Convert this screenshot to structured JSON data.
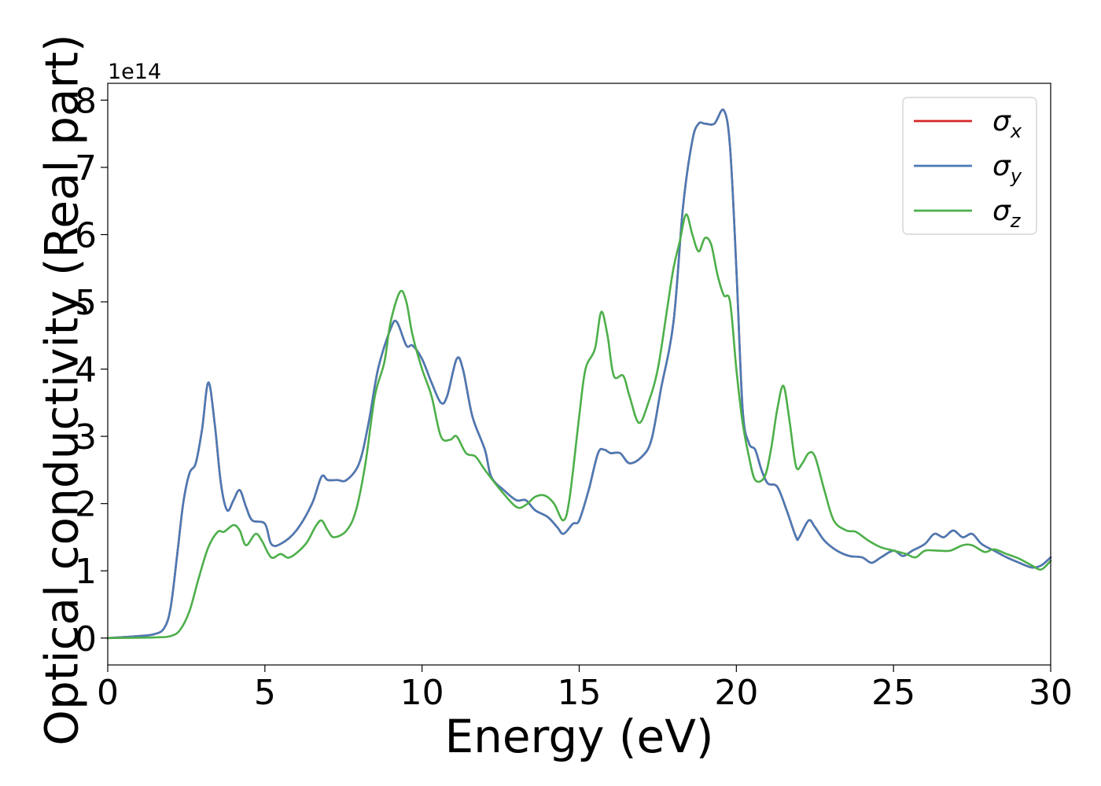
{
  "chart_data": {
    "type": "line",
    "xlabel": "Energy (eV)",
    "ylabel": "Optical conductivity (Real part)",
    "y_offset_label": "1e14",
    "xlim": [
      0,
      30
    ],
    "ylim": [
      -0.4,
      8.25
    ],
    "x_ticks": [
      0,
      5,
      10,
      15,
      20,
      25,
      30
    ],
    "y_ticks": [
      0,
      1,
      2,
      3,
      4,
      5,
      6,
      7,
      8
    ],
    "grid": false,
    "legend_position": "top-right",
    "series": [
      {
        "name": "σx",
        "legend_symbol": "σ",
        "legend_subscript": "x",
        "color": "#d62728",
        "points": [
          [
            0,
            0
          ],
          [
            1,
            0.03
          ],
          [
            1.5,
            0.06
          ],
          [
            1.8,
            0.15
          ],
          [
            2.0,
            0.45
          ],
          [
            2.2,
            1.2
          ],
          [
            2.4,
            2.0
          ],
          [
            2.6,
            2.45
          ],
          [
            2.8,
            2.6
          ],
          [
            3.0,
            3.1
          ],
          [
            3.2,
            3.8
          ],
          [
            3.4,
            3.2
          ],
          [
            3.6,
            2.3
          ],
          [
            3.8,
            1.9
          ],
          [
            4.0,
            2.05
          ],
          [
            4.2,
            2.2
          ],
          [
            4.4,
            1.95
          ],
          [
            4.6,
            1.75
          ],
          [
            5.0,
            1.7
          ],
          [
            5.2,
            1.4
          ],
          [
            5.5,
            1.4
          ],
          [
            6.0,
            1.6
          ],
          [
            6.5,
            2.0
          ],
          [
            6.8,
            2.4
          ],
          [
            7.0,
            2.35
          ],
          [
            7.3,
            2.35
          ],
          [
            7.6,
            2.35
          ],
          [
            8.0,
            2.6
          ],
          [
            8.3,
            3.2
          ],
          [
            8.6,
            4.0
          ],
          [
            9.0,
            4.6
          ],
          [
            9.2,
            4.7
          ],
          [
            9.5,
            4.35
          ],
          [
            9.7,
            4.35
          ],
          [
            10.0,
            4.15
          ],
          [
            10.3,
            3.8
          ],
          [
            10.6,
            3.5
          ],
          [
            10.8,
            3.6
          ],
          [
            11.1,
            4.15
          ],
          [
            11.3,
            4.0
          ],
          [
            11.6,
            3.3
          ],
          [
            12.0,
            2.8
          ],
          [
            12.2,
            2.4
          ],
          [
            12.6,
            2.2
          ],
          [
            13.0,
            2.05
          ],
          [
            13.3,
            2.05
          ],
          [
            13.6,
            1.9
          ],
          [
            14.0,
            1.8
          ],
          [
            14.3,
            1.65
          ],
          [
            14.5,
            1.55
          ],
          [
            14.8,
            1.7
          ],
          [
            15.0,
            1.75
          ],
          [
            15.3,
            2.2
          ],
          [
            15.6,
            2.75
          ],
          [
            15.8,
            2.8
          ],
          [
            16.0,
            2.75
          ],
          [
            16.3,
            2.75
          ],
          [
            16.6,
            2.6
          ],
          [
            17.0,
            2.7
          ],
          [
            17.3,
            2.95
          ],
          [
            17.6,
            3.7
          ],
          [
            18.0,
            4.7
          ],
          [
            18.3,
            6.4
          ],
          [
            18.6,
            7.4
          ],
          [
            18.8,
            7.65
          ],
          [
            19.0,
            7.65
          ],
          [
            19.3,
            7.65
          ],
          [
            19.6,
            7.85
          ],
          [
            19.8,
            7.3
          ],
          [
            20.0,
            5.5
          ],
          [
            20.2,
            3.4
          ],
          [
            20.4,
            2.9
          ],
          [
            20.6,
            2.8
          ],
          [
            20.8,
            2.5
          ],
          [
            21.0,
            2.3
          ],
          [
            21.3,
            2.25
          ],
          [
            21.6,
            1.9
          ],
          [
            21.9,
            1.5
          ],
          [
            22.0,
            1.5
          ],
          [
            22.3,
            1.75
          ],
          [
            22.5,
            1.65
          ],
          [
            22.8,
            1.45
          ],
          [
            23.2,
            1.3
          ],
          [
            23.6,
            1.22
          ],
          [
            24.0,
            1.2
          ],
          [
            24.3,
            1.12
          ],
          [
            24.6,
            1.2
          ],
          [
            25.0,
            1.3
          ],
          [
            25.3,
            1.22
          ],
          [
            25.6,
            1.3
          ],
          [
            26.0,
            1.4
          ],
          [
            26.3,
            1.55
          ],
          [
            26.6,
            1.5
          ],
          [
            26.9,
            1.6
          ],
          [
            27.2,
            1.5
          ],
          [
            27.5,
            1.55
          ],
          [
            27.8,
            1.4
          ],
          [
            28.2,
            1.3
          ],
          [
            28.6,
            1.2
          ],
          [
            29.0,
            1.12
          ],
          [
            29.4,
            1.05
          ],
          [
            29.7,
            1.08
          ],
          [
            30.0,
            1.2
          ]
        ]
      },
      {
        "name": "σy",
        "legend_symbol": "σ",
        "legend_subscript": "y",
        "color": "#4a7ab5",
        "points": [
          [
            0,
            0
          ],
          [
            1,
            0.03
          ],
          [
            1.5,
            0.06
          ],
          [
            1.8,
            0.15
          ],
          [
            2.0,
            0.45
          ],
          [
            2.2,
            1.2
          ],
          [
            2.4,
            2.0
          ],
          [
            2.6,
            2.45
          ],
          [
            2.8,
            2.6
          ],
          [
            3.0,
            3.1
          ],
          [
            3.2,
            3.8
          ],
          [
            3.4,
            3.2
          ],
          [
            3.6,
            2.3
          ],
          [
            3.8,
            1.9
          ],
          [
            4.0,
            2.05
          ],
          [
            4.2,
            2.2
          ],
          [
            4.4,
            1.95
          ],
          [
            4.6,
            1.75
          ],
          [
            5.0,
            1.7
          ],
          [
            5.2,
            1.4
          ],
          [
            5.5,
            1.4
          ],
          [
            6.0,
            1.6
          ],
          [
            6.5,
            2.0
          ],
          [
            6.8,
            2.4
          ],
          [
            7.0,
            2.35
          ],
          [
            7.3,
            2.35
          ],
          [
            7.6,
            2.35
          ],
          [
            8.0,
            2.6
          ],
          [
            8.3,
            3.2
          ],
          [
            8.6,
            4.0
          ],
          [
            9.0,
            4.6
          ],
          [
            9.2,
            4.7
          ],
          [
            9.5,
            4.35
          ],
          [
            9.7,
            4.35
          ],
          [
            10.0,
            4.15
          ],
          [
            10.3,
            3.8
          ],
          [
            10.6,
            3.5
          ],
          [
            10.8,
            3.6
          ],
          [
            11.1,
            4.15
          ],
          [
            11.3,
            4.0
          ],
          [
            11.6,
            3.3
          ],
          [
            12.0,
            2.8
          ],
          [
            12.2,
            2.4
          ],
          [
            12.6,
            2.2
          ],
          [
            13.0,
            2.05
          ],
          [
            13.3,
            2.05
          ],
          [
            13.6,
            1.9
          ],
          [
            14.0,
            1.8
          ],
          [
            14.3,
            1.65
          ],
          [
            14.5,
            1.55
          ],
          [
            14.8,
            1.7
          ],
          [
            15.0,
            1.75
          ],
          [
            15.3,
            2.2
          ],
          [
            15.6,
            2.75
          ],
          [
            15.8,
            2.8
          ],
          [
            16.0,
            2.75
          ],
          [
            16.3,
            2.75
          ],
          [
            16.6,
            2.6
          ],
          [
            17.0,
            2.7
          ],
          [
            17.3,
            2.95
          ],
          [
            17.6,
            3.7
          ],
          [
            18.0,
            4.7
          ],
          [
            18.3,
            6.4
          ],
          [
            18.6,
            7.4
          ],
          [
            18.8,
            7.65
          ],
          [
            19.0,
            7.65
          ],
          [
            19.3,
            7.65
          ],
          [
            19.6,
            7.85
          ],
          [
            19.8,
            7.3
          ],
          [
            20.0,
            5.5
          ],
          [
            20.2,
            3.4
          ],
          [
            20.4,
            2.9
          ],
          [
            20.6,
            2.8
          ],
          [
            20.8,
            2.5
          ],
          [
            21.0,
            2.3
          ],
          [
            21.3,
            2.25
          ],
          [
            21.6,
            1.9
          ],
          [
            21.9,
            1.5
          ],
          [
            22.0,
            1.5
          ],
          [
            22.3,
            1.75
          ],
          [
            22.5,
            1.65
          ],
          [
            22.8,
            1.45
          ],
          [
            23.2,
            1.3
          ],
          [
            23.6,
            1.22
          ],
          [
            24.0,
            1.2
          ],
          [
            24.3,
            1.12
          ],
          [
            24.6,
            1.2
          ],
          [
            25.0,
            1.3
          ],
          [
            25.3,
            1.22
          ],
          [
            25.6,
            1.3
          ],
          [
            26.0,
            1.4
          ],
          [
            26.3,
            1.55
          ],
          [
            26.6,
            1.5
          ],
          [
            26.9,
            1.6
          ],
          [
            27.2,
            1.5
          ],
          [
            27.5,
            1.55
          ],
          [
            27.8,
            1.4
          ],
          [
            28.2,
            1.3
          ],
          [
            28.6,
            1.2
          ],
          [
            29.0,
            1.12
          ],
          [
            29.4,
            1.05
          ],
          [
            29.7,
            1.08
          ],
          [
            30.0,
            1.2
          ]
        ]
      },
      {
        "name": "σz",
        "legend_symbol": "σ",
        "legend_subscript": "z",
        "color": "#4daf4a",
        "points": [
          [
            0,
            0
          ],
          [
            1.5,
            0.01
          ],
          [
            2.0,
            0.03
          ],
          [
            2.3,
            0.12
          ],
          [
            2.6,
            0.4
          ],
          [
            2.9,
            0.9
          ],
          [
            3.2,
            1.35
          ],
          [
            3.5,
            1.58
          ],
          [
            3.7,
            1.58
          ],
          [
            4.0,
            1.68
          ],
          [
            4.2,
            1.6
          ],
          [
            4.4,
            1.38
          ],
          [
            4.7,
            1.55
          ],
          [
            4.9,
            1.45
          ],
          [
            5.2,
            1.2
          ],
          [
            5.5,
            1.25
          ],
          [
            5.8,
            1.2
          ],
          [
            6.3,
            1.4
          ],
          [
            6.6,
            1.65
          ],
          [
            6.8,
            1.75
          ],
          [
            7.0,
            1.6
          ],
          [
            7.2,
            1.5
          ],
          [
            7.6,
            1.6
          ],
          [
            7.9,
            1.9
          ],
          [
            8.2,
            2.6
          ],
          [
            8.5,
            3.6
          ],
          [
            8.8,
            4.1
          ],
          [
            9.0,
            4.7
          ],
          [
            9.3,
            5.15
          ],
          [
            9.5,
            5.0
          ],
          [
            9.7,
            4.5
          ],
          [
            10.0,
            4.0
          ],
          [
            10.3,
            3.6
          ],
          [
            10.6,
            3.0
          ],
          [
            10.9,
            2.95
          ],
          [
            11.1,
            3.0
          ],
          [
            11.4,
            2.75
          ],
          [
            11.7,
            2.7
          ],
          [
            12.0,
            2.5
          ],
          [
            12.5,
            2.2
          ],
          [
            13.0,
            1.95
          ],
          [
            13.3,
            1.98
          ],
          [
            13.6,
            2.1
          ],
          [
            13.9,
            2.12
          ],
          [
            14.2,
            2.0
          ],
          [
            14.5,
            1.75
          ],
          [
            14.7,
            2.1
          ],
          [
            15.0,
            3.3
          ],
          [
            15.2,
            4.0
          ],
          [
            15.5,
            4.3
          ],
          [
            15.7,
            4.85
          ],
          [
            15.9,
            4.5
          ],
          [
            16.1,
            3.9
          ],
          [
            16.4,
            3.9
          ],
          [
            16.6,
            3.6
          ],
          [
            16.9,
            3.2
          ],
          [
            17.2,
            3.5
          ],
          [
            17.5,
            4.0
          ],
          [
            17.8,
            4.9
          ],
          [
            18.0,
            5.5
          ],
          [
            18.2,
            5.9
          ],
          [
            18.4,
            6.3
          ],
          [
            18.6,
            6.0
          ],
          [
            18.8,
            5.75
          ],
          [
            19.0,
            5.95
          ],
          [
            19.2,
            5.85
          ],
          [
            19.4,
            5.4
          ],
          [
            19.6,
            5.1
          ],
          [
            19.8,
            5.0
          ],
          [
            20.0,
            4.0
          ],
          [
            20.2,
            3.2
          ],
          [
            20.4,
            2.7
          ],
          [
            20.6,
            2.35
          ],
          [
            20.9,
            2.4
          ],
          [
            21.1,
            2.8
          ],
          [
            21.3,
            3.4
          ],
          [
            21.5,
            3.75
          ],
          [
            21.7,
            3.2
          ],
          [
            21.9,
            2.55
          ],
          [
            22.1,
            2.6
          ],
          [
            22.3,
            2.75
          ],
          [
            22.5,
            2.7
          ],
          [
            22.8,
            2.2
          ],
          [
            23.1,
            1.75
          ],
          [
            23.5,
            1.6
          ],
          [
            23.8,
            1.58
          ],
          [
            24.2,
            1.45
          ],
          [
            24.6,
            1.35
          ],
          [
            25.0,
            1.3
          ],
          [
            25.4,
            1.25
          ],
          [
            25.7,
            1.2
          ],
          [
            26.0,
            1.3
          ],
          [
            26.4,
            1.3
          ],
          [
            26.8,
            1.3
          ],
          [
            27.2,
            1.38
          ],
          [
            27.5,
            1.38
          ],
          [
            27.9,
            1.28
          ],
          [
            28.2,
            1.32
          ],
          [
            28.6,
            1.25
          ],
          [
            29.0,
            1.18
          ],
          [
            29.4,
            1.08
          ],
          [
            29.7,
            1.02
          ],
          [
            30.0,
            1.15
          ]
        ]
      }
    ]
  }
}
